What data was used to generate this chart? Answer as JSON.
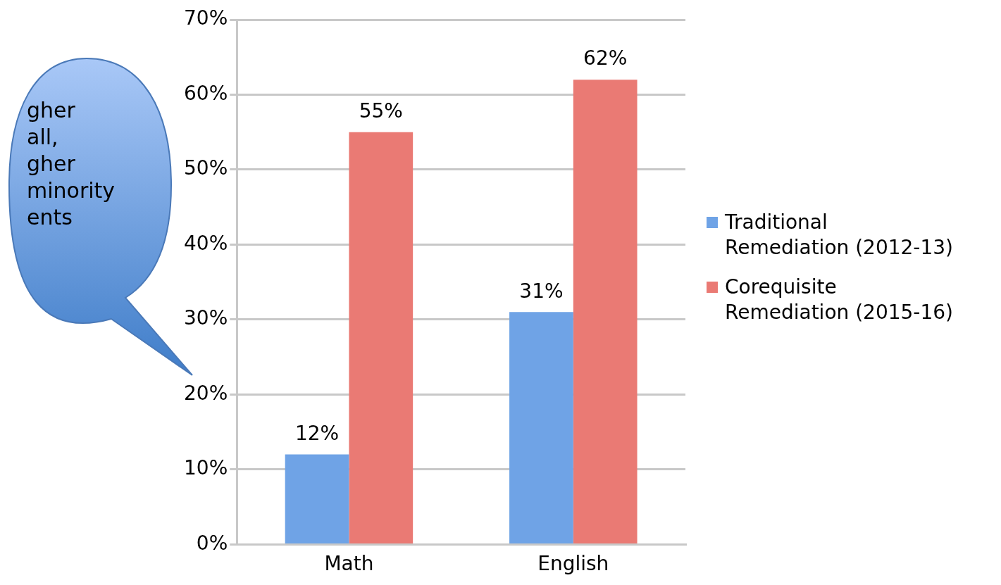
{
  "chart_data": {
    "type": "bar",
    "categories": [
      "Math",
      "English"
    ],
    "series": [
      {
        "name": "Traditional Remediation (2012-13)",
        "color": "#6fa3e6",
        "values": [
          12,
          31
        ]
      },
      {
        "name": "Corequisite Remediation (2015-16)",
        "color": "#ea7a74",
        "values": [
          55,
          62
        ]
      }
    ],
    "ylim": [
      0,
      70
    ],
    "yticks": [
      {
        "value": 0,
        "label": "0%"
      },
      {
        "value": 10,
        "label": "10%"
      },
      {
        "value": 20,
        "label": "20%"
      },
      {
        "value": 30,
        "label": "30%"
      },
      {
        "value": 40,
        "label": "40%"
      },
      {
        "value": 50,
        "label": "50%"
      },
      {
        "value": 60,
        "label": "60%"
      },
      {
        "value": 70,
        "label": "70%"
      }
    ],
    "value_labels": [
      [
        "12%",
        "31%"
      ],
      [
        "55%",
        "62%"
      ]
    ],
    "annotations": [
      "gher\nall,\ngher\nminority\nents"
    ],
    "grid": "y",
    "legend": "right"
  }
}
